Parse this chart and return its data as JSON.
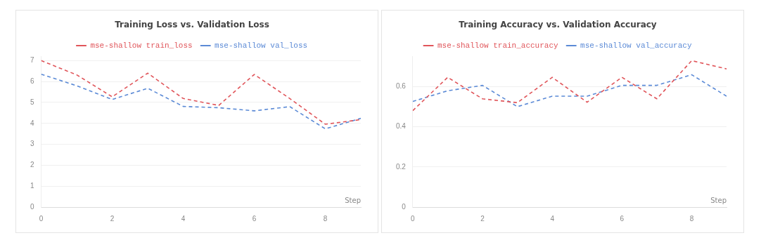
{
  "chart_data": [
    {
      "type": "line",
      "title": "Training Loss vs. Validation Loss",
      "xlabel": "Step",
      "x": [
        0,
        1,
        2,
        3,
        4,
        5,
        6,
        7,
        8,
        9
      ],
      "xlim": [
        0,
        9
      ],
      "xticks": [
        0,
        2,
        4,
        6,
        8
      ],
      "ylim": [
        0,
        7.2
      ],
      "yticks": [
        0,
        1,
        2,
        3,
        4,
        5,
        6,
        7
      ],
      "grid": "y",
      "legend": "top",
      "line_style": "dashed",
      "series": [
        {
          "name": "mse-shallow train_loss",
          "color": "#e0555a",
          "values": [
            7.0,
            6.32,
            5.27,
            6.4,
            5.19,
            4.86,
            6.34,
            5.19,
            3.96,
            4.18
          ]
        },
        {
          "name": "mse-shallow val_loss",
          "color": "#5b8ad6",
          "values": [
            6.35,
            5.8,
            5.14,
            5.68,
            4.81,
            4.75,
            4.6,
            4.8,
            3.74,
            4.24
          ]
        }
      ]
    },
    {
      "type": "line",
      "title": "Training Accuracy vs. Validation Accuracy",
      "xlabel": "Step",
      "x": [
        0,
        1,
        2,
        3,
        4,
        5,
        6,
        7,
        8,
        9
      ],
      "xlim": [
        0,
        9
      ],
      "xticks": [
        0,
        2,
        4,
        6,
        8
      ],
      "ylim": [
        0,
        0.75
      ],
      "yticks": [
        0,
        0.2,
        0.4,
        0.6
      ],
      "grid": "y",
      "legend": "top",
      "line_style": "dashed",
      "series": [
        {
          "name": "mse-shallow train_accuracy",
          "color": "#e0555a",
          "values": [
            0.48,
            0.646,
            0.539,
            0.52,
            0.646,
            0.522,
            0.646,
            0.539,
            0.729,
            0.688
          ]
        },
        {
          "name": "mse-shallow val_accuracy",
          "color": "#5b8ad6",
          "values": [
            0.526,
            0.579,
            0.606,
            0.5,
            0.552,
            0.552,
            0.606,
            0.606,
            0.659,
            0.552
          ]
        }
      ]
    }
  ]
}
